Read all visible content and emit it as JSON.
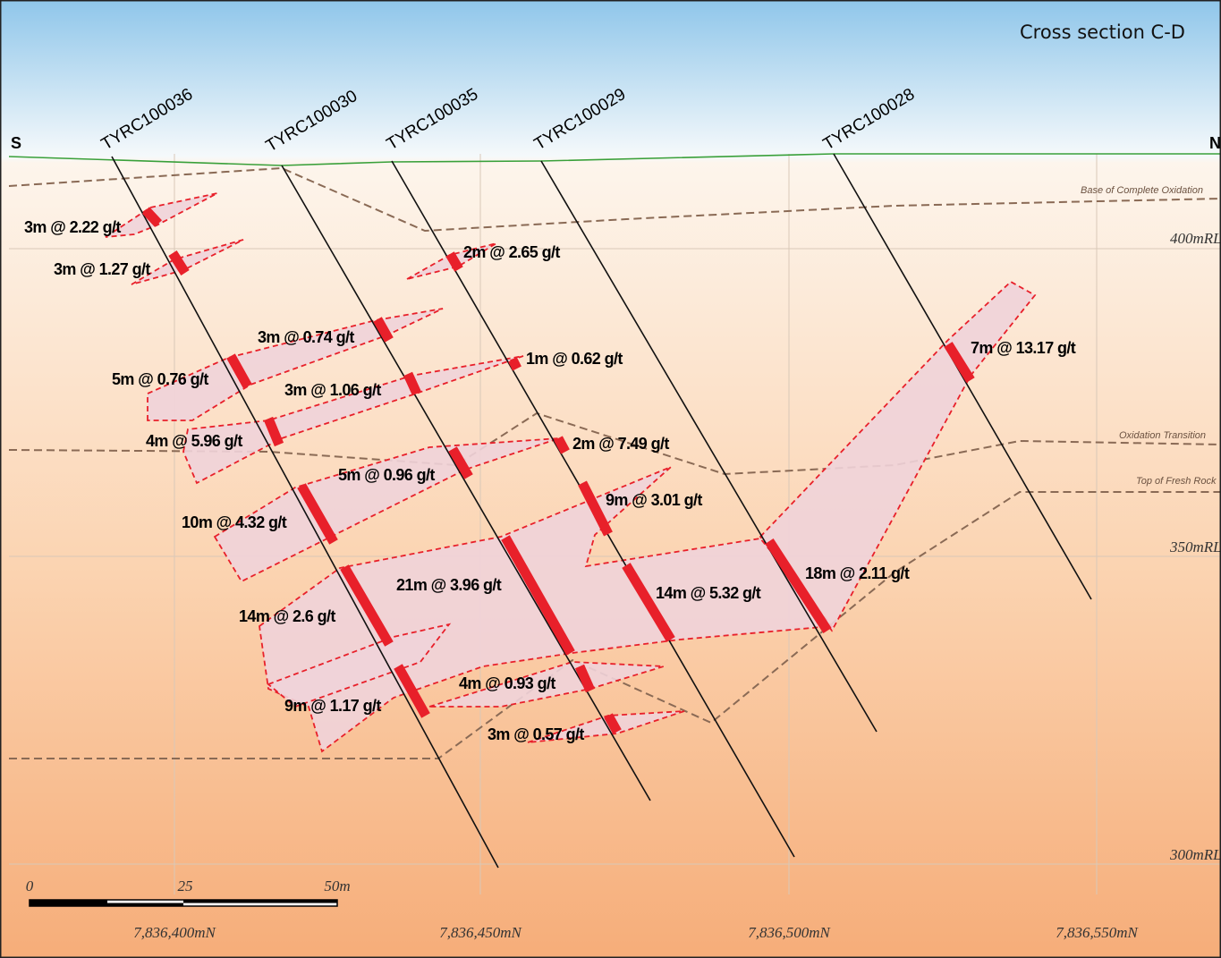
{
  "title": "Cross section C-D",
  "directions": {
    "south": "S",
    "north": "N"
  },
  "holes": [
    "TYRC100036",
    "TYRC100030",
    "TYRC100035",
    "TYRC100029",
    "TYRC100028"
  ],
  "horizons": [
    "Base of Complete Oxidation",
    "Oxidation Transition",
    "Top of Fresh Rock"
  ],
  "elevations": [
    "400mRL",
    "350mRL",
    "300mRL"
  ],
  "scale_bar": [
    "0",
    "25",
    "50m"
  ],
  "northings": [
    "7,836,400mN",
    "7,836,450mN",
    "7,836,500mN",
    "7,836,550mN"
  ],
  "intercepts": [
    "3m @ 2.22 g/t",
    "3m @ 1.27 g/t",
    "2m @ 2.65 g/t",
    "3m @ 0.74 g/t",
    "1m @ 0.62 g/t",
    "7m @ 13.17 g/t",
    "5m @ 0.76 g/t",
    "3m @ 1.06 g/t",
    "4m @ 5.96 g/t",
    "2m @ 7.49 g/t",
    "5m @ 0.96 g/t",
    "9m @ 3.01 g/t",
    "10m @ 4.32 g/t",
    "18m @ 2.11 g/t",
    "21m @ 3.96 g/t",
    "14m @ 5.32 g/t",
    "14m @ 2.6 g/t",
    "4m @ 0.93 g/t",
    "9m @ 1.17 g/t",
    "3m @ 0.57 g/t"
  ]
}
